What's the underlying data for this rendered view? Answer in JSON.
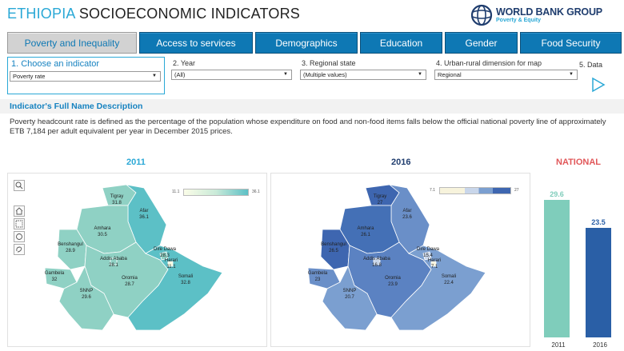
{
  "header": {
    "title_part1": "ETHIOPIA",
    "title_part2": "SOCIOECONOMIC INDICATORS",
    "logo_line1": "WORLD BANK GROUP",
    "logo_line2": "Poverty & Equity"
  },
  "tabs": [
    {
      "label": "Poverty and Inequality",
      "active": true
    },
    {
      "label": "Access to services",
      "active": false
    },
    {
      "label": "Demographics",
      "active": false
    },
    {
      "label": "Education",
      "active": false
    },
    {
      "label": "Gender",
      "active": false
    },
    {
      "label": "Food Security",
      "active": false
    }
  ],
  "filters": {
    "indicator": {
      "label": "1. Choose an indicator",
      "value": "Poverty rate"
    },
    "year": {
      "label": "2. Year",
      "value": "(All)"
    },
    "region": {
      "label": "3. Regional state",
      "value": "(Multiple values)"
    },
    "urban_rural": {
      "label": "4. Urban-rural dimension for map",
      "value": "Regional"
    },
    "data": {
      "label": "5. Data"
    }
  },
  "description": {
    "title": "Indicator's Full Name Description",
    "body": "Poverty headcount rate is defined as the percentage of the population whose expenditure on food and non-food items falls below the official national poverty line of approximately ETB 7,184 per adult equivalent per year in December 2015 prices."
  },
  "maps": {
    "y2011": {
      "year": "2011",
      "legend_min": "11.1",
      "legend_max": "36.1",
      "regions": [
        {
          "name": "Tigray",
          "value": "31.8"
        },
        {
          "name": "Afar",
          "value": "36.1"
        },
        {
          "name": "Amhara",
          "value": "30.5"
        },
        {
          "name": "Benshangul",
          "value": "28.9"
        },
        {
          "name": "Addis Ababa",
          "value": "28.1"
        },
        {
          "name": "Dire Dawa",
          "value": "28.3"
        },
        {
          "name": "Harari",
          "value": "11.1"
        },
        {
          "name": "Gambela",
          "value": "32"
        },
        {
          "name": "Oromia",
          "value": "28.7"
        },
        {
          "name": "Somali",
          "value": "32.8"
        },
        {
          "name": "SNNP",
          "value": "29.6"
        }
      ]
    },
    "y2016": {
      "year": "2016",
      "legend_min": "7.1",
      "legend_max": "27",
      "regions": [
        {
          "name": "Tigray",
          "value": "27"
        },
        {
          "name": "Afar",
          "value": "23.6"
        },
        {
          "name": "Amhara",
          "value": "26.1"
        },
        {
          "name": "Benshangul",
          "value": "26.5"
        },
        {
          "name": "Addis Ababa",
          "value": "16.8"
        },
        {
          "name": "Dire Dawa",
          "value": "15.4"
        },
        {
          "name": "Harari",
          "value": "7.1"
        },
        {
          "name": "Gambela",
          "value": "23"
        },
        {
          "name": "Oromia",
          "value": "23.9"
        },
        {
          "name": "Somali",
          "value": "22.4"
        },
        {
          "name": "SNNP",
          "value": "20.7"
        }
      ]
    }
  },
  "national": {
    "title": "NATIONAL"
  },
  "colors": {
    "accent": "#2aa8d6",
    "tab_blue": "#0e78b4",
    "map2011": "#8fd1c4",
    "map2016": "#4a72b8",
    "bar2011": "#7fcdbb",
    "bar2016": "#2a5fa6",
    "national_title": "#e15759"
  },
  "chart_data": {
    "type": "bar",
    "title": "NATIONAL",
    "categories": [
      "2011",
      "2016"
    ],
    "values": [
      29.6,
      23.5
    ],
    "ylim": [
      0,
      32
    ]
  }
}
